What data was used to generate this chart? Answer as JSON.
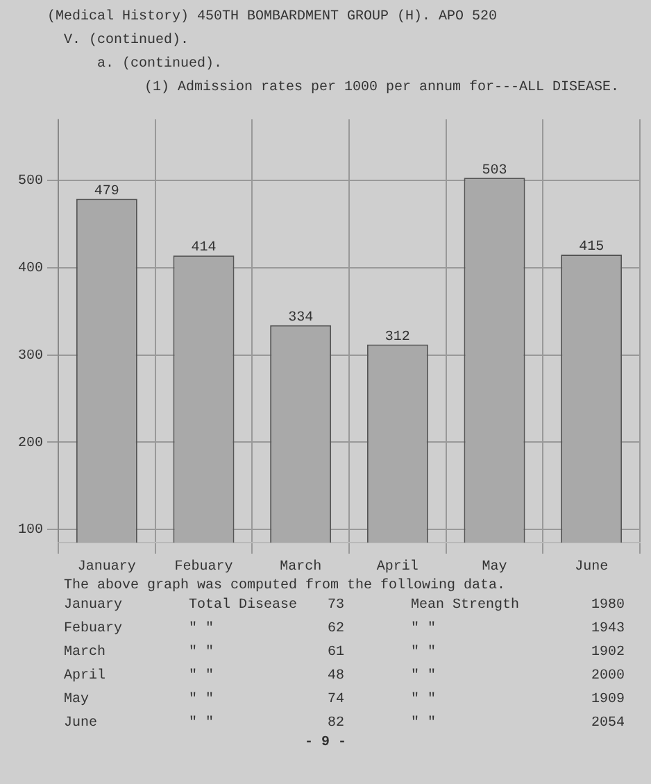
{
  "chart_data": {
    "type": "bar",
    "title": "(Medical History) 450TH BOMBARDMENT GROUP (H). APO 520",
    "subtitle": "V. (continued).\na. (continued).\n(1) Admission rates per 1000 per annum for---ALL DISEASE.",
    "categories": [
      "January",
      "Febuary",
      "March",
      "April",
      "May",
      "June"
    ],
    "values": [
      479,
      414,
      334,
      312,
      503,
      415
    ],
    "color": "#a9a9a9",
    "ylim": [
      85,
      570
    ],
    "yticks": [
      100,
      200,
      300,
      400,
      500
    ],
    "grid": true,
    "data_labels": true,
    "annotations": [
      "The above graph was computed from the following data.",
      "January",
      "Total Disease",
      "73",
      "Mean Strength",
      "1980",
      "Febuary",
      "\"   \"",
      "62",
      "\"   \"",
      "1943",
      "March",
      "\"   \"",
      "61",
      "\"   \"",
      "1902",
      "April",
      "\"   \"",
      "48",
      "\"   \"",
      "2000",
      "May",
      "\"   \"",
      "74",
      "\"   \"",
      "1909",
      "June",
      "\"   \"",
      "82",
      "\"   \"",
      "2054",
      "- 9 -"
    ]
  }
}
